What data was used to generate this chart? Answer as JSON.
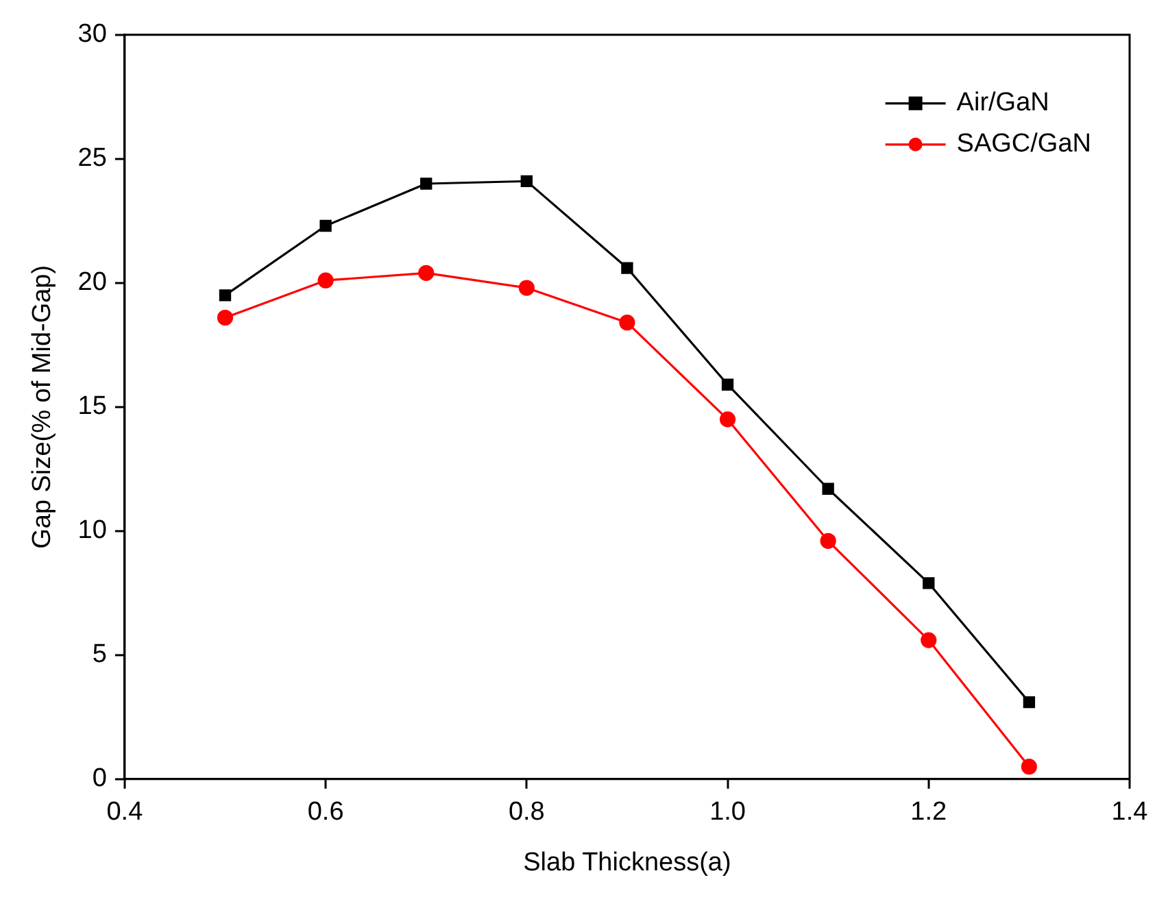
{
  "chart_data": {
    "type": "line",
    "xlabel": "Slab Thickness(a)",
    "ylabel": "Gap Size(% of Mid-Gap)",
    "x": [
      0.5,
      0.6,
      0.7,
      0.8,
      0.9,
      1.0,
      1.1,
      1.2,
      1.3
    ],
    "series": [
      {
        "name": "Air/GaN",
        "color": "#000000",
        "marker": "square",
        "values": [
          19.5,
          22.3,
          24.0,
          24.1,
          20.6,
          15.9,
          11.7,
          7.9,
          3.1
        ]
      },
      {
        "name": "SAGC/GaN",
        "color": "#ff0000",
        "marker": "circle",
        "values": [
          18.6,
          20.1,
          20.4,
          19.8,
          18.4,
          14.5,
          9.6,
          5.6,
          0.5
        ]
      }
    ],
    "xlim": [
      0.4,
      1.4
    ],
    "xticks": [
      {
        "value": 0.4,
        "label": "0.4"
      },
      {
        "value": 0.6,
        "label": "0.6"
      },
      {
        "value": 0.8,
        "label": "0.8"
      },
      {
        "value": 1.0,
        "label": "1.0"
      },
      {
        "value": 1.2,
        "label": "1.2"
      },
      {
        "value": 1.4,
        "label": "1.4"
      }
    ],
    "ylim": [
      0,
      30
    ],
    "yticks": [
      0,
      5,
      10,
      15,
      20,
      25,
      30
    ],
    "grid": false,
    "legend": "top right",
    "line_style": "solid"
  }
}
